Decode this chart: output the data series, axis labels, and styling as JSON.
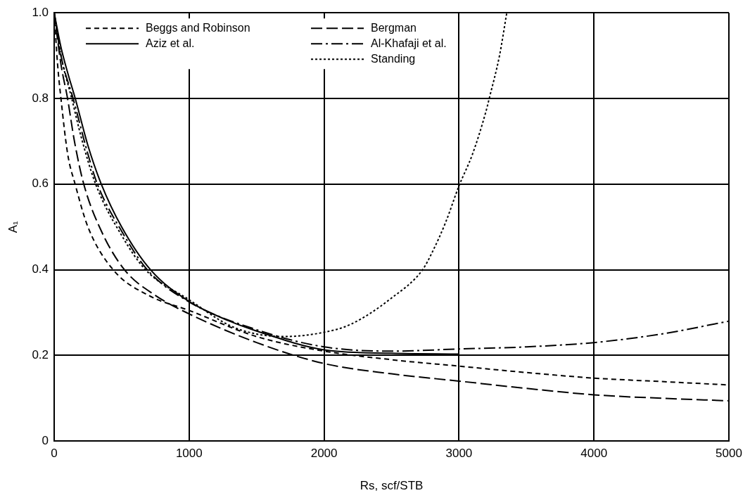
{
  "chart_data": {
    "type": "line",
    "xlabel": "Rs, scf/STB",
    "ylabel": "A₁",
    "xlim": [
      0,
      5000
    ],
    "xticks": [
      0,
      1000,
      2000,
      3000,
      4000,
      5000
    ],
    "ylim": [
      0,
      1
    ],
    "yticks": [
      0,
      0.2,
      0.4,
      0.6,
      {
        "value": 0.8,
        "label": "0.8"
      },
      {
        "value": 1,
        "label": "1.0"
      }
    ],
    "grid": true,
    "legend": "top left",
    "marker": "none",
    "series": [
      {
        "name": "Beggs and Robinson",
        "color": "#000000",
        "line_style": "dashed",
        "x": [
          0,
          25,
          50,
          100,
          155,
          250,
          437,
          700,
          1000,
          1500,
          2000,
          2500,
          3000,
          3500,
          4000,
          4500,
          5000
        ],
        "values": [
          1,
          0.88,
          0.8,
          0.67,
          0.6,
          0.5,
          0.4,
          0.34,
          0.305,
          0.244,
          0.21,
          0.19,
          0.175,
          0.16,
          0.147,
          0.139,
          0.131
        ]
      },
      {
        "name": "Aziz et al.",
        "color": "#000000",
        "line_style": "solid",
        "x": [
          0,
          50,
          100,
          156,
          250,
          349,
          500,
          714,
          1000,
          1300,
          1500,
          2000,
          2500,
          3000
        ],
        "values": [
          1,
          0.92,
          0.86,
          0.8,
          0.69,
          0.6,
          0.5,
          0.4,
          0.326,
          0.28,
          0.257,
          0.213,
          0.205,
          0.203
        ]
      },
      {
        "name": "Bergman",
        "color": "#000000",
        "line_style": "longdash",
        "x": [
          0,
          50,
          99,
          150,
          219,
          350,
          521,
          750,
          1000,
          1500,
          2000,
          2500,
          3000,
          3500,
          4000,
          4500,
          5000
        ],
        "values": [
          1,
          0.88,
          0.8,
          0.7,
          0.6,
          0.49,
          0.4,
          0.34,
          0.297,
          0.23,
          0.181,
          0.157,
          0.14,
          0.123,
          0.108,
          0.1,
          0.094
        ]
      },
      {
        "name": "Al-Khafaji et al.",
        "color": "#000000",
        "line_style": "dashdot",
        "x": [
          0,
          50,
          140,
          250,
          320,
          500,
          690,
          1000,
          1500,
          2000,
          2500,
          3000,
          3500,
          4000,
          4500,
          5000
        ],
        "values": [
          1,
          0.9,
          0.8,
          0.67,
          0.6,
          0.49,
          0.4,
          0.325,
          0.26,
          0.22,
          0.21,
          0.215,
          0.22,
          0.23,
          0.25,
          0.28
        ]
      },
      {
        "name": "Standing",
        "color": "#000000",
        "line_style": "dotted",
        "x": [
          0,
          50,
          130,
          200,
          307,
          500,
          677,
          1000,
          1300,
          1500,
          1700,
          2000,
          2200,
          2500,
          2730,
          2800,
          2900,
          3000,
          3100,
          3200,
          3224,
          3300,
          3354
        ],
        "values": [
          1,
          0.9,
          0.8,
          0.71,
          0.6,
          0.48,
          0.4,
          0.33,
          0.27,
          0.25,
          0.244,
          0.254,
          0.273,
          0.334,
          0.4,
          0.44,
          0.51,
          0.596,
          0.67,
          0.77,
          0.8,
          0.9,
          1
        ]
      }
    ]
  }
}
